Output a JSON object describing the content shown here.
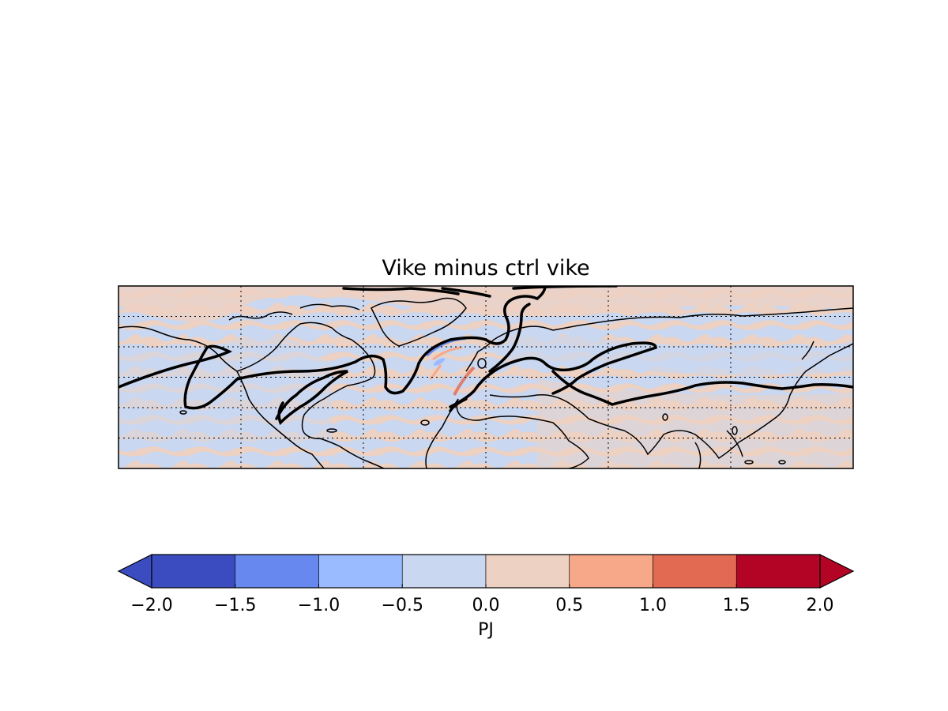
{
  "title": "Vike minus ctrl vike",
  "colorbar": {
    "label": "PJ",
    "ticks": [
      "−2.0",
      "−1.5",
      "−1.0",
      "−0.5",
      "0.0",
      "0.5",
      "1.0",
      "1.5",
      "2.0"
    ],
    "levels": [
      -2.0,
      -1.5,
      -1.0,
      -0.5,
      0.0,
      0.5,
      1.0,
      1.5,
      2.0
    ],
    "colors": [
      "#3b4cc0",
      "#6788ee",
      "#9abbff",
      "#c9d7f0",
      "#edd1c2",
      "#f7a889",
      "#e26952",
      "#b40426"
    ],
    "extend": "both"
  },
  "map": {
    "projection": "cylindrical",
    "gridlines": "dotted",
    "background_colors": {
      "negative": "#c9d7f0",
      "positive": "#edd1c2"
    }
  }
}
